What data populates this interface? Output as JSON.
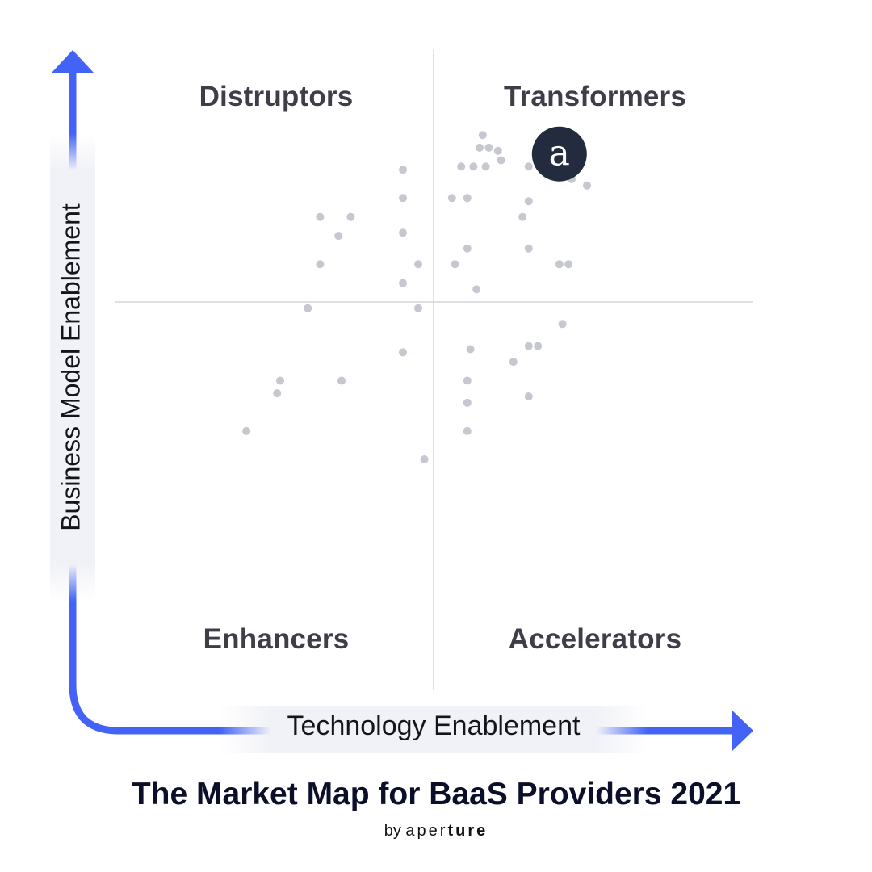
{
  "chart_data": {
    "type": "scatter",
    "title": "The Market Map for BaaS Providers 2021",
    "subtitle_by": "by",
    "subtitle_brand_light": "aper",
    "subtitle_brand_bold": "ture",
    "xlabel": "Technology Enablement",
    "ylabel": "Business Model Enablement",
    "xlim": [
      -10,
      10
    ],
    "ylim": [
      -10,
      10
    ],
    "grid": false,
    "quadrants": {
      "top_left": "Distruptors",
      "top_right": "Transformers",
      "bottom_left": "Enhancers",
      "bottom_right": "Accelerators"
    },
    "highlight": {
      "label": "a",
      "x": 4.1,
      "y": 4.7,
      "color": "#222c3e"
    },
    "points": [
      {
        "x": 1.6,
        "y": 5.3
      },
      {
        "x": 1.5,
        "y": 4.9
      },
      {
        "x": 1.8,
        "y": 4.9
      },
      {
        "x": 2.1,
        "y": 4.8
      },
      {
        "x": 2.2,
        "y": 4.5
      },
      {
        "x": 0.9,
        "y": 4.3
      },
      {
        "x": 1.3,
        "y": 4.3
      },
      {
        "x": 1.7,
        "y": 4.3
      },
      {
        "x": 3.1,
        "y": 4.3
      },
      {
        "x": 4.5,
        "y": 3.9
      },
      {
        "x": 5.0,
        "y": 3.7
      },
      {
        "x": -1.0,
        "y": 4.2
      },
      {
        "x": -1.0,
        "y": 3.3
      },
      {
        "x": 0.6,
        "y": 3.3
      },
      {
        "x": 1.1,
        "y": 3.3
      },
      {
        "x": 3.1,
        "y": 3.2
      },
      {
        "x": -3.7,
        "y": 2.7
      },
      {
        "x": -2.7,
        "y": 2.7
      },
      {
        "x": 2.9,
        "y": 2.7
      },
      {
        "x": -3.1,
        "y": 2.1
      },
      {
        "x": -1.0,
        "y": 2.2
      },
      {
        "x": 1.1,
        "y": 1.7
      },
      {
        "x": 3.1,
        "y": 1.7
      },
      {
        "x": -3.7,
        "y": 1.2
      },
      {
        "x": -0.5,
        "y": 1.2
      },
      {
        "x": 0.7,
        "y": 1.2
      },
      {
        "x": 4.1,
        "y": 1.2
      },
      {
        "x": 4.4,
        "y": 1.2
      },
      {
        "x": -1.0,
        "y": 0.6
      },
      {
        "x": 1.4,
        "y": 0.4
      },
      {
        "x": -4.1,
        "y": -0.2
      },
      {
        "x": -0.5,
        "y": -0.2
      },
      {
        "x": 4.2,
        "y": -0.7
      },
      {
        "x": 3.1,
        "y": -1.4
      },
      {
        "x": 3.4,
        "y": -1.4
      },
      {
        "x": -1.0,
        "y": -1.6
      },
      {
        "x": 1.2,
        "y": -1.5
      },
      {
        "x": 2.6,
        "y": -1.9
      },
      {
        "x": -5.0,
        "y": -2.5
      },
      {
        "x": -3.0,
        "y": -2.5
      },
      {
        "x": 1.1,
        "y": -2.5
      },
      {
        "x": -5.1,
        "y": -2.9
      },
      {
        "x": 3.1,
        "y": -3.0
      },
      {
        "x": 1.1,
        "y": -3.2
      },
      {
        "x": -6.1,
        "y": -4.1
      },
      {
        "x": 1.1,
        "y": -4.1
      },
      {
        "x": -0.3,
        "y": -5.0
      }
    ]
  },
  "colors": {
    "axis_blue": "#4263f6",
    "dot": "#c6c8d0",
    "divider": "#d6d6da"
  }
}
